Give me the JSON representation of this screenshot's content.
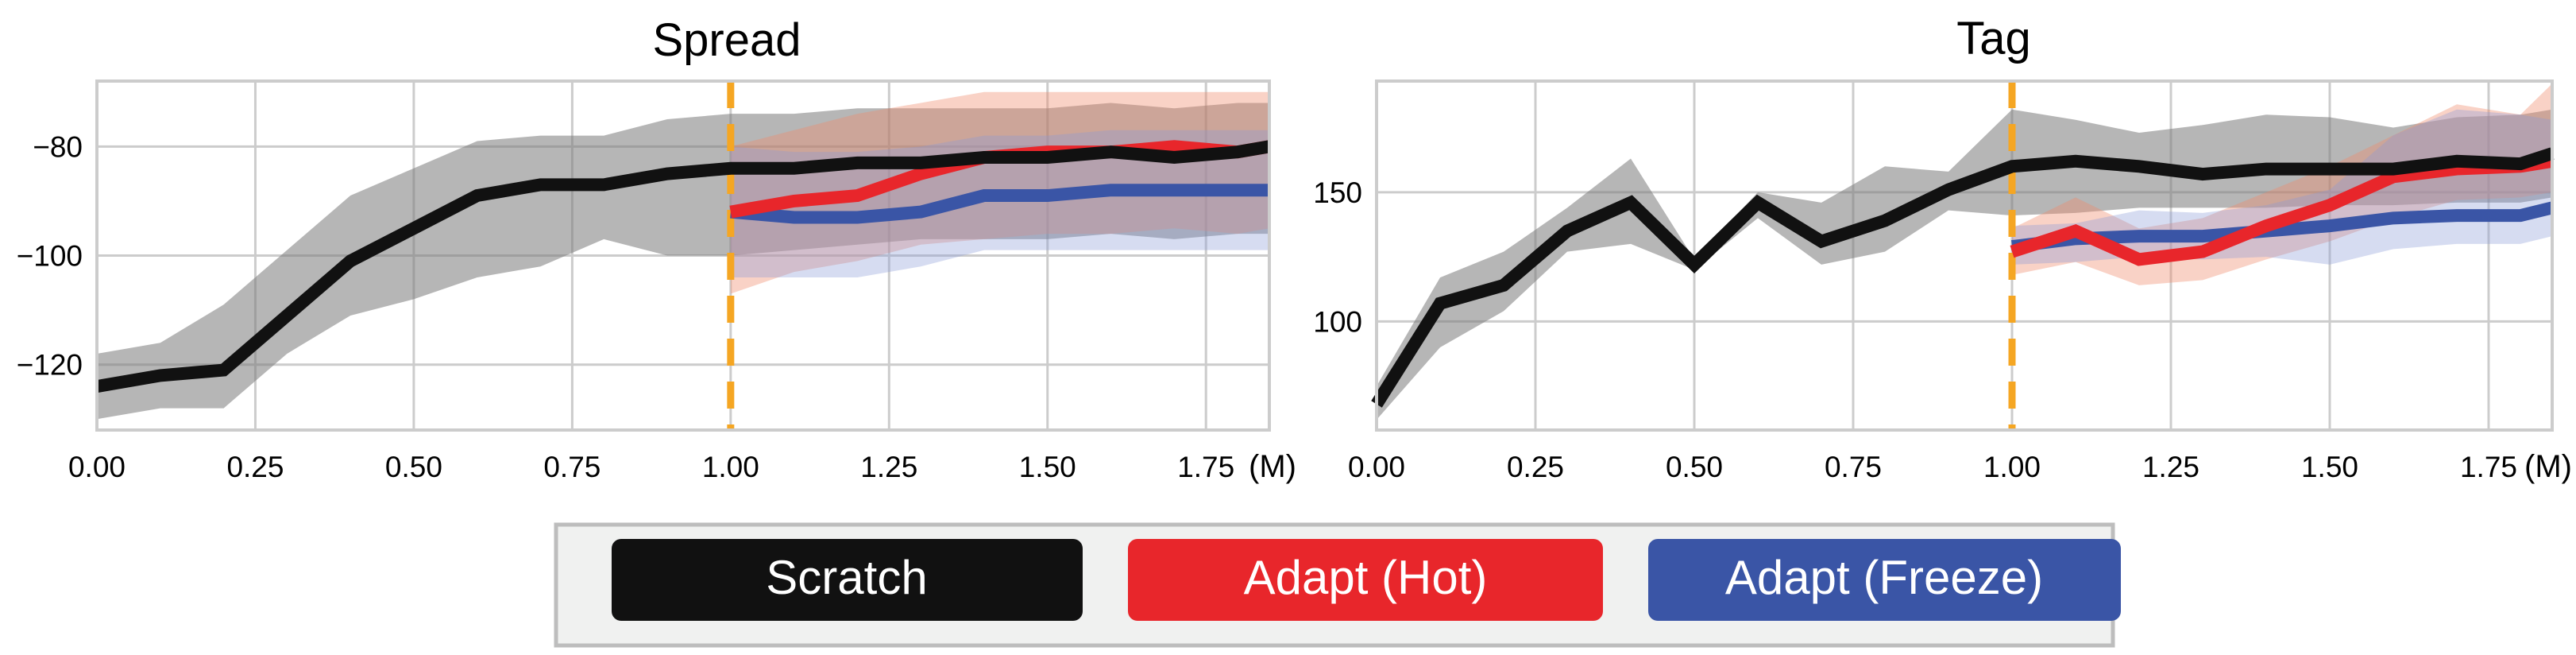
{
  "colors": {
    "scratch": "#111111",
    "hot": "#e8262b",
    "freeze": "#3a55a6",
    "switch_line": "#f5a623",
    "grid": "#cccccc",
    "legend_bg": "#f0f1f0",
    "legend_border": "#bdbdbd"
  },
  "legend": {
    "items": [
      {
        "label": "Scratch",
        "color": "#111111"
      },
      {
        "label": "Adapt (Hot)",
        "color": "#e8262b"
      },
      {
        "label": "Adapt (Freeze)",
        "color": "#3a55a6"
      }
    ]
  },
  "chart_data": [
    {
      "type": "line",
      "title": "Spread",
      "x_unit": "(M)",
      "xlim": [
        0.0,
        1.85
      ],
      "ylim": [
        -132,
        -68
      ],
      "xticks": [
        "0.00",
        "0.25",
        "0.50",
        "0.75",
        "1.00",
        "1.25",
        "1.50",
        "1.75"
      ],
      "yticks": [
        -120,
        -100,
        -80
      ],
      "grid": true,
      "switch_x": 1.0,
      "series": [
        {
          "name": "Scratch",
          "x": [
            0.0,
            0.1,
            0.2,
            0.3,
            0.4,
            0.5,
            0.6,
            0.7,
            0.8,
            0.9,
            1.0,
            1.1,
            1.2,
            1.3,
            1.4,
            1.5,
            1.6,
            1.7,
            1.8,
            1.85
          ],
          "values": [
            -124,
            -122,
            -121,
            -111,
            -101,
            -95,
            -89,
            -87,
            -87,
            -85,
            -84,
            -84,
            -83,
            -83,
            -82,
            -82,
            -81,
            -82,
            -81,
            -80
          ],
          "lower": [
            -130,
            -128,
            -128,
            -118,
            -111,
            -108,
            -104,
            -102,
            -97,
            -100,
            -100,
            -99,
            -98,
            -97,
            -97,
            -97,
            -96,
            -97,
            -96,
            -96
          ],
          "upper": [
            -118,
            -116,
            -109,
            -99,
            -89,
            -84,
            -79,
            -78,
            -78,
            -75,
            -74,
            -74,
            -73,
            -73,
            -73,
            -73,
            -72,
            -73,
            -72,
            -72
          ]
        },
        {
          "name": "Adapt (Hot)",
          "x": [
            1.0,
            1.1,
            1.2,
            1.3,
            1.4,
            1.5,
            1.6,
            1.7,
            1.8,
            1.85
          ],
          "values": [
            -92,
            -90,
            -89,
            -85,
            -82,
            -81,
            -81,
            -80,
            -81,
            -80
          ],
          "lower": [
            -107,
            -103,
            -101,
            -98,
            -97,
            -96,
            -96,
            -95,
            -96,
            -95
          ],
          "upper": [
            -80,
            -77,
            -74,
            -72,
            -70,
            -70,
            -70,
            -70,
            -70,
            -70
          ]
        },
        {
          "name": "Adapt (Freeze)",
          "x": [
            1.0,
            1.1,
            1.2,
            1.3,
            1.4,
            1.5,
            1.6,
            1.7,
            1.8,
            1.85
          ],
          "values": [
            -92,
            -93,
            -93,
            -92,
            -89,
            -89,
            -88,
            -88,
            -88,
            -88
          ],
          "lower": [
            -104,
            -104,
            -104,
            -102,
            -99,
            -99,
            -99,
            -99,
            -99,
            -99
          ],
          "upper": [
            -80,
            -81,
            -81,
            -80,
            -78,
            -78,
            -77,
            -77,
            -77,
            -77
          ]
        }
      ]
    },
    {
      "type": "line",
      "title": "Tag",
      "x_unit": "(M)",
      "xlim": [
        0.0,
        1.85
      ],
      "ylim": [
        58,
        193
      ],
      "xticks": [
        "0.00",
        "0.25",
        "0.50",
        "0.75",
        "1.00",
        "1.25",
        "1.50",
        "1.75"
      ],
      "yticks": [
        100,
        150
      ],
      "grid": true,
      "switch_x": 1.0,
      "series": [
        {
          "name": "Scratch",
          "x": [
            0.0,
            0.1,
            0.2,
            0.3,
            0.4,
            0.5,
            0.6,
            0.7,
            0.8,
            0.9,
            1.0,
            1.1,
            1.2,
            1.3,
            1.4,
            1.5,
            1.6,
            1.7,
            1.8,
            1.85
          ],
          "values": [
            68,
            107,
            114,
            135,
            146,
            122,
            146,
            131,
            139,
            151,
            160,
            162,
            160,
            157,
            159,
            159,
            159,
            162,
            161,
            165
          ],
          "lower": [
            62,
            90,
            104,
            127,
            130,
            120,
            140,
            122,
            127,
            143,
            141,
            142,
            144,
            144,
            144,
            145,
            145,
            146,
            146,
            148
          ],
          "upper": [
            75,
            117,
            127,
            144,
            163,
            124,
            150,
            146,
            160,
            158,
            182,
            178,
            173,
            176,
            180,
            179,
            175,
            179,
            180,
            182
          ]
        },
        {
          "name": "Adapt (Hot)",
          "x": [
            1.0,
            1.1,
            1.2,
            1.3,
            1.4,
            1.5,
            1.6,
            1.7,
            1.8,
            1.85
          ],
          "values": [
            127,
            135,
            124,
            127,
            137,
            145,
            156,
            159,
            160,
            162
          ],
          "lower": [
            118,
            123,
            114,
            116,
            124,
            131,
            140,
            147,
            148,
            150
          ],
          "upper": [
            136,
            148,
            136,
            140,
            150,
            160,
            172,
            184,
            180,
            192
          ]
        },
        {
          "name": "Adapt (Freeze)",
          "x": [
            1.0,
            1.1,
            1.2,
            1.3,
            1.4,
            1.5,
            1.6,
            1.7,
            1.8,
            1.85
          ],
          "values": [
            129,
            132,
            133,
            133,
            135,
            137,
            140,
            141,
            141,
            144
          ],
          "lower": [
            122,
            123,
            125,
            124,
            125,
            122,
            128,
            130,
            130,
            133
          ],
          "upper": [
            137,
            138,
            143,
            142,
            145,
            151,
            172,
            182,
            180,
            178
          ]
        }
      ]
    }
  ]
}
